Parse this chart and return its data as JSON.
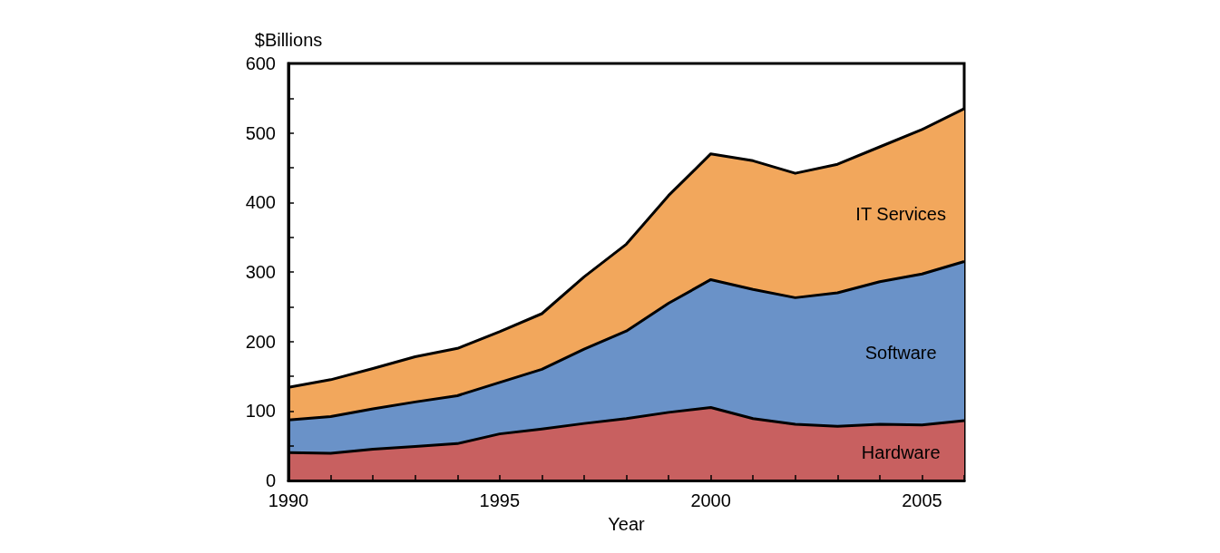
{
  "chart_data": {
    "type": "area",
    "stacked": true,
    "xlabel": "Year",
    "ylabel": "$Billions",
    "x": [
      1990,
      1991,
      1992,
      1993,
      1994,
      1995,
      1996,
      1997,
      1998,
      1999,
      2000,
      2001,
      2002,
      2003,
      2004,
      2005,
      2006
    ],
    "series": [
      {
        "name": "Hardware",
        "color": "#c86060",
        "values": [
          40,
          39,
          45,
          49,
          53,
          67,
          74,
          82,
          89,
          98,
          105,
          89,
          81,
          78,
          81,
          80,
          86
        ]
      },
      {
        "name": "Software",
        "color": "#6a92c8",
        "values": [
          47,
          53,
          58,
          64,
          69,
          74,
          86,
          107,
          126,
          157,
          184,
          186,
          182,
          192,
          205,
          217,
          229
        ]
      },
      {
        "name": "IT Services",
        "color": "#f2a75c",
        "values": [
          47,
          53,
          58,
          65,
          68,
          73,
          80,
          104,
          125,
          155,
          181,
          185,
          179,
          185,
          194,
          208,
          220
        ]
      }
    ],
    "xlim": [
      1990,
      2006
    ],
    "xticks": [
      1990,
      {
        "value": 1991,
        "label": null
      },
      {
        "value": 1992,
        "label": null
      },
      {
        "value": 1993,
        "label": null
      },
      {
        "value": 1994,
        "label": null
      },
      1995,
      {
        "value": 1996,
        "label": null
      },
      {
        "value": 1997,
        "label": null
      },
      {
        "value": 1998,
        "label": null
      },
      {
        "value": 1999,
        "label": null
      },
      2000,
      {
        "value": 2001,
        "label": null
      },
      {
        "value": 2002,
        "label": null
      },
      {
        "value": 2003,
        "label": null
      },
      {
        "value": 2004,
        "label": null
      },
      2005,
      {
        "value": 2006,
        "label": null
      }
    ],
    "ylim": [
      0,
      600
    ],
    "yticks": [
      0,
      {
        "value": 50,
        "label": null
      },
      100,
      {
        "value": 150,
        "label": null
      },
      200,
      {
        "value": 250,
        "label": null
      },
      300,
      {
        "value": 350,
        "label": null
      },
      400,
      {
        "value": 450,
        "label": null
      },
      500,
      {
        "value": 550,
        "label": null
      },
      600
    ],
    "grid": false,
    "legend": false,
    "marker": "none",
    "line_style": "solid"
  }
}
